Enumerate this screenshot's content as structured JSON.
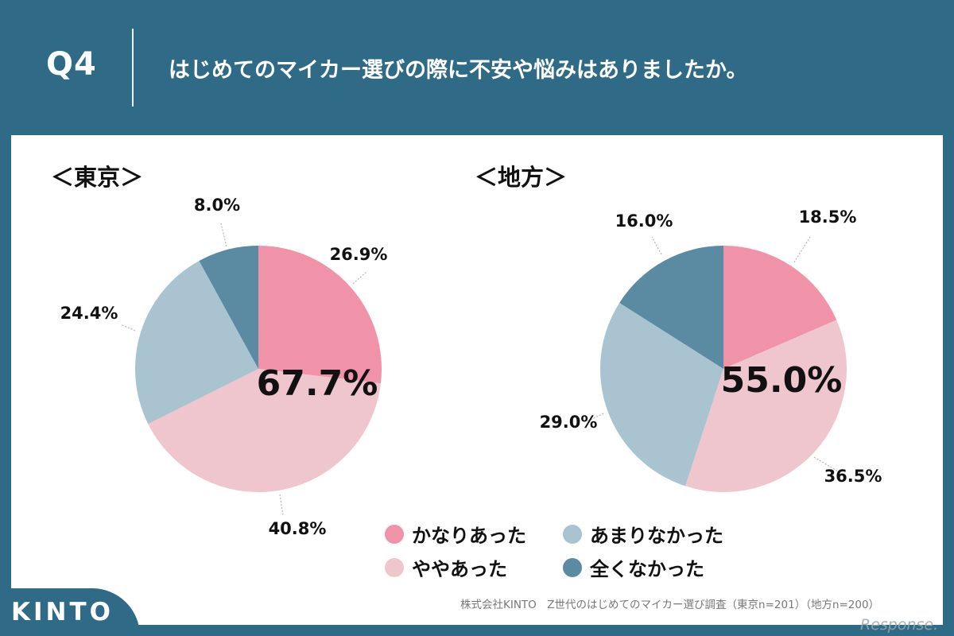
{
  "header": {
    "q_label": "Q4",
    "question": "はじめてのマイカー選びの際に不安や悩みはありましたか。"
  },
  "colors": {
    "band": "#2f6a86",
    "panel": "#ffffff",
    "かなりあった": "#f093a9",
    "ややあった": "#efc6cd",
    "あまりなかった": "#a9c4d0",
    "全くなかった": "#5a8ba2"
  },
  "chart_data": [
    {
      "type": "pie",
      "title": "＜東京＞",
      "categories": [
        "かなりあった",
        "ややあった",
        "あまりなかった",
        "全くなかった"
      ],
      "values": [
        26.9,
        40.8,
        24.4,
        8.0
      ],
      "labels": [
        "26.9%",
        "40.8%",
        "24.4%",
        "8.0%"
      ],
      "center_annotation": "67.7%"
    },
    {
      "type": "pie",
      "title": "＜地方＞",
      "categories": [
        "かなりあった",
        "ややあった",
        "あまりなかった",
        "全くなかった"
      ],
      "values": [
        18.5,
        36.5,
        29.0,
        16.0
      ],
      "labels": [
        "18.5%",
        "36.5%",
        "29.0%",
        "16.0%"
      ],
      "center_annotation": "55.0%"
    }
  ],
  "legend": [
    {
      "label": "かなりあった"
    },
    {
      "label": "あまりなかった"
    },
    {
      "label": "ややあった"
    },
    {
      "label": "全くなかった"
    }
  ],
  "source": "株式会社KINTO　Z世代のはじめてのマイカー選び調査（東京n=201）（地方n=200）",
  "logo": "KINTO",
  "watermark": "Response."
}
